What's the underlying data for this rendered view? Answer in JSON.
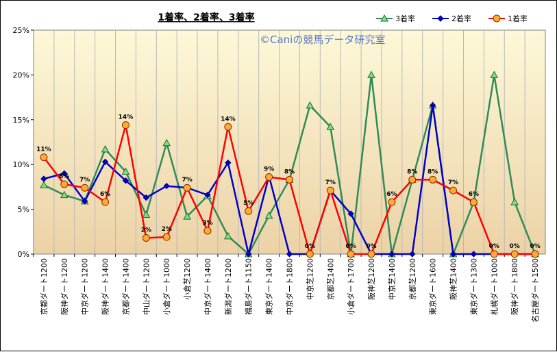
{
  "chart_data": {
    "type": "line",
    "title": "1着率、2着率、3着率",
    "watermark": "©Caniの競馬データ研究室",
    "ylim": [
      0,
      25
    ],
    "yticks": [
      "0%",
      "5%",
      "10%",
      "15%",
      "20%",
      "25%"
    ],
    "grid": "vertical",
    "legend_position": "top-right",
    "categories": [
      "京都ダート1200",
      "阪神ダート1200",
      "中京ダート1200",
      "阪神ダート1400",
      "京都ダート1400",
      "中山ダート1200",
      "小倉ダート1000",
      "小倉芝1200",
      "中京ダート1400",
      "新潟ダート1200",
      "福島ダート1150",
      "東京ダート1400",
      "中京ダート1800",
      "中京芝1200",
      "京都芝1400",
      "小倉ダート1700",
      "阪神芝1200",
      "中京芝1400",
      "京都芝1200",
      "東京ダート1600",
      "阪神芝1400",
      "東京ダート1300",
      "札幌ダート1000",
      "阪神ダート1800",
      "名古屋ダート1500"
    ],
    "series": [
      {
        "name": "3着率",
        "color": "#2e8b57",
        "marker": "triangle",
        "marker_fill": "#7ee07e",
        "values": [
          7.7,
          6.6,
          5.9,
          11.7,
          9.2,
          4.4,
          12.4,
          4.2,
          6.5,
          2.0,
          0,
          4.3,
          8.3,
          16.6,
          14.2,
          0,
          20.0,
          0,
          8.3,
          16.6,
          0,
          5.8,
          20.0,
          5.8,
          0
        ]
      },
      {
        "name": "2着率",
        "color": "#0000cc",
        "marker": "diamond",
        "marker_fill": "#0000cc",
        "values": [
          8.4,
          9.0,
          5.9,
          10.3,
          8.2,
          6.3,
          7.6,
          7.4,
          6.6,
          10.2,
          0,
          8.7,
          0,
          0,
          7.1,
          4.5,
          0,
          0,
          0,
          16.6,
          0,
          0,
          0,
          0,
          0
        ]
      },
      {
        "name": "1着率",
        "color": "#ff0000",
        "marker": "circle",
        "marker_fill": "#ffaa33",
        "values": [
          10.8,
          7.8,
          7.4,
          5.8,
          14.4,
          1.8,
          1.9,
          7.4,
          2.6,
          14.2,
          4.8,
          8.6,
          8.3,
          0,
          7.1,
          0,
          0,
          5.8,
          8.3,
          8.3,
          7.1,
          5.8,
          0,
          0,
          0
        ]
      }
    ],
    "data_labels": [
      "11%",
      "8%",
      "7%",
      "6%",
      "14%",
      "2%",
      "2%",
      "7%",
      "3%",
      "14%",
      "5%",
      "9%",
      "8%",
      "0%",
      "7%",
      "0%",
      "0%",
      "6%",
      "8%",
      "8%",
      "7%",
      "6%",
      "0%",
      "0%",
      "0%"
    ]
  }
}
